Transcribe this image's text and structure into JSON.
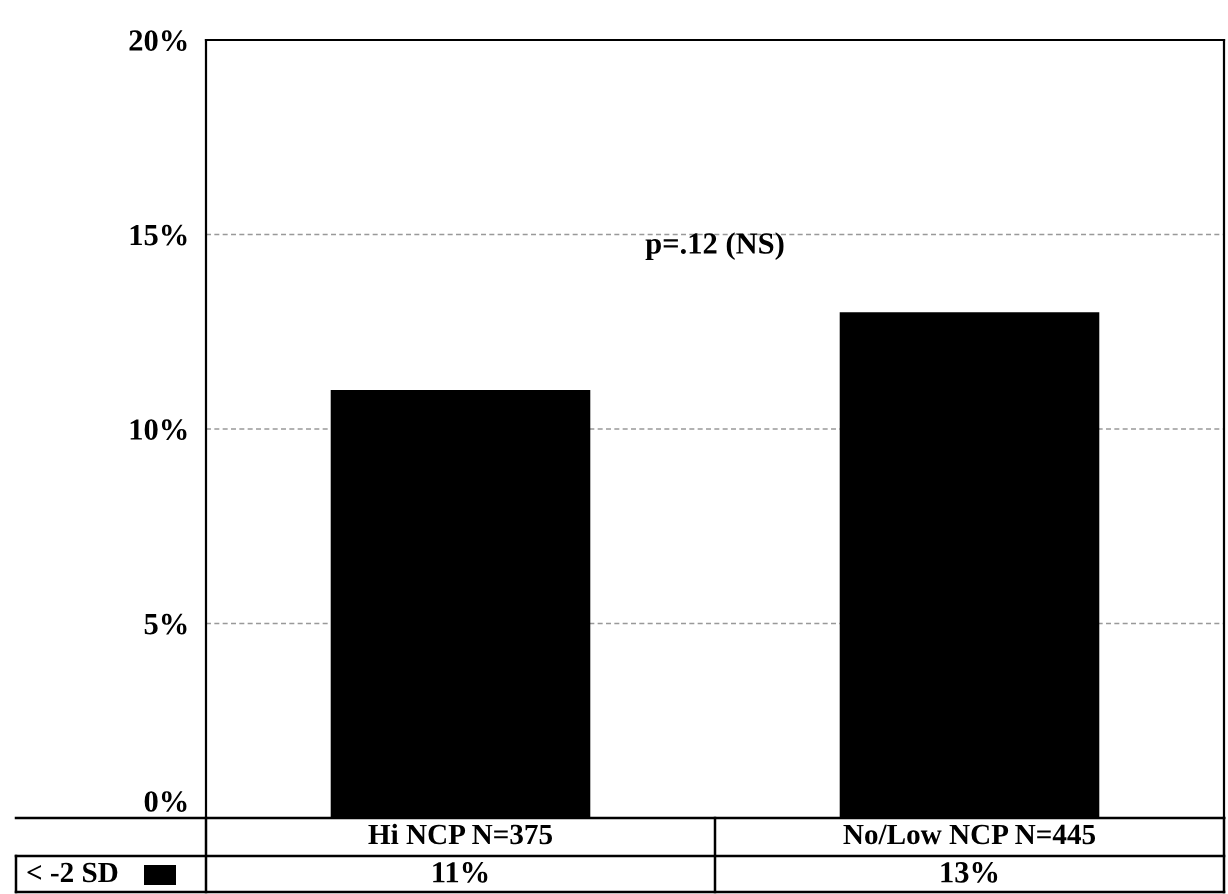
{
  "chart_data": {
    "type": "bar",
    "categories": [
      "Hi NCP N=375",
      "No/Low NCP N=445"
    ],
    "series": [
      {
        "name": "< -2 SD",
        "color": "#000000",
        "values": [
          11,
          13
        ],
        "value_labels": [
          "11%",
          "13%"
        ]
      }
    ],
    "ylim": [
      0,
      20
    ],
    "yticks": [
      {
        "value": 0,
        "label": "0%"
      },
      {
        "value": 5,
        "label": "5%"
      },
      {
        "value": 10,
        "label": "10%"
      },
      {
        "value": 15,
        "label": "15%"
      },
      {
        "value": 20,
        "label": "20%"
      }
    ],
    "grid": "y",
    "legend": "bottom left",
    "annotations": [
      "p=.12 (NS)"
    ]
  }
}
